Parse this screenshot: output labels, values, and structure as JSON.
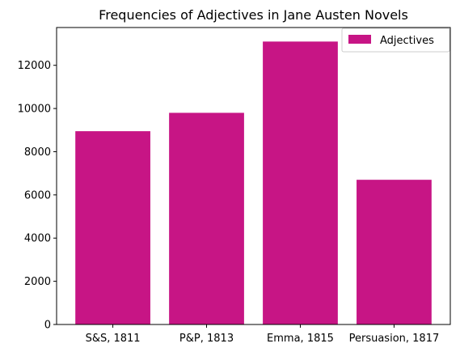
{
  "chart_data": {
    "type": "bar",
    "title": "Frequencies of Adjectives in Jane Austen Novels",
    "xlabel": "",
    "ylabel": "",
    "categories": [
      "S&S, 1811",
      "P&P, 1813",
      "Emma, 1815",
      "Persuasion, 1817"
    ],
    "series": [
      {
        "name": "Adjectives",
        "values": [
          8950,
          9800,
          13100,
          6700
        ],
        "color": "#c71585"
      }
    ],
    "ylim": [
      0,
      13750
    ],
    "yticks": [
      0,
      2000,
      4000,
      6000,
      8000,
      10000,
      12000
    ],
    "ytick_labels": [
      "0",
      "2000",
      "4000",
      "6000",
      "8000",
      "10000",
      "12000"
    ],
    "grid": false,
    "legend": {
      "placement": "top-right",
      "entries": [
        "Adjectives"
      ]
    }
  }
}
